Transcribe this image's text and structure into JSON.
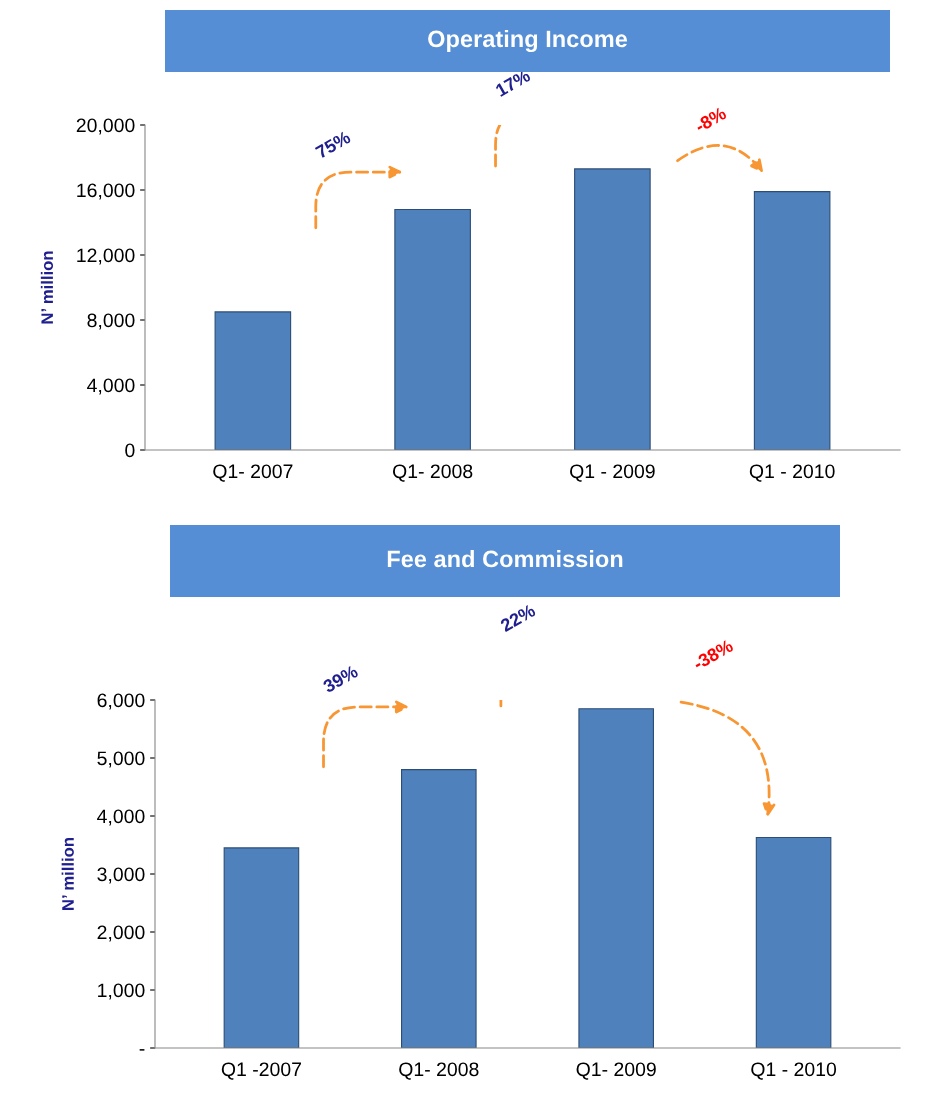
{
  "chart_data": [
    {
      "type": "bar",
      "title": "Operating Income",
      "ylabel": "N’ million",
      "categories": [
        "Q1- 2007",
        "Q1- 2008",
        "Q1 - 2009",
        "Q1 - 2010"
      ],
      "values": [
        8500,
        14800,
        17300,
        15900
      ],
      "color": "#4f81bd",
      "ylim": [
        0,
        20000
      ],
      "yticks": [
        {
          "value": 0,
          "label": "0"
        },
        {
          "value": 4000,
          "label": "4,000"
        },
        {
          "value": 8000,
          "label": "8,000"
        },
        {
          "value": 12000,
          "label": "12,000"
        },
        {
          "value": 16000,
          "label": "16,000"
        },
        {
          "value": 20000,
          "label": "20,000"
        }
      ],
      "annotations": [
        "75%",
        "17%",
        "-8%"
      ],
      "grid": false
    },
    {
      "type": "bar",
      "title": "Fee and Commission",
      "ylabel": "N’ million",
      "categories": [
        "Q1 -2007",
        "Q1- 2008",
        "Q1- 2009",
        "Q1 - 2010"
      ],
      "values": [
        3450,
        4800,
        5850,
        3630
      ],
      "color": "#4f81bd",
      "ylim": [
        0,
        6000
      ],
      "yticks": [
        {
          "value": 0,
          "label": "-"
        },
        {
          "value": 1000,
          "label": "1,000"
        },
        {
          "value": 2000,
          "label": "2,000"
        },
        {
          "value": 3000,
          "label": "3,000"
        },
        {
          "value": 4000,
          "label": "4,000"
        },
        {
          "value": 5000,
          "label": "5,000"
        },
        {
          "value": 6000,
          "label": "6,000"
        }
      ],
      "annotations": [
        "39%",
        "22%",
        "-38%"
      ],
      "grid": false
    }
  ]
}
